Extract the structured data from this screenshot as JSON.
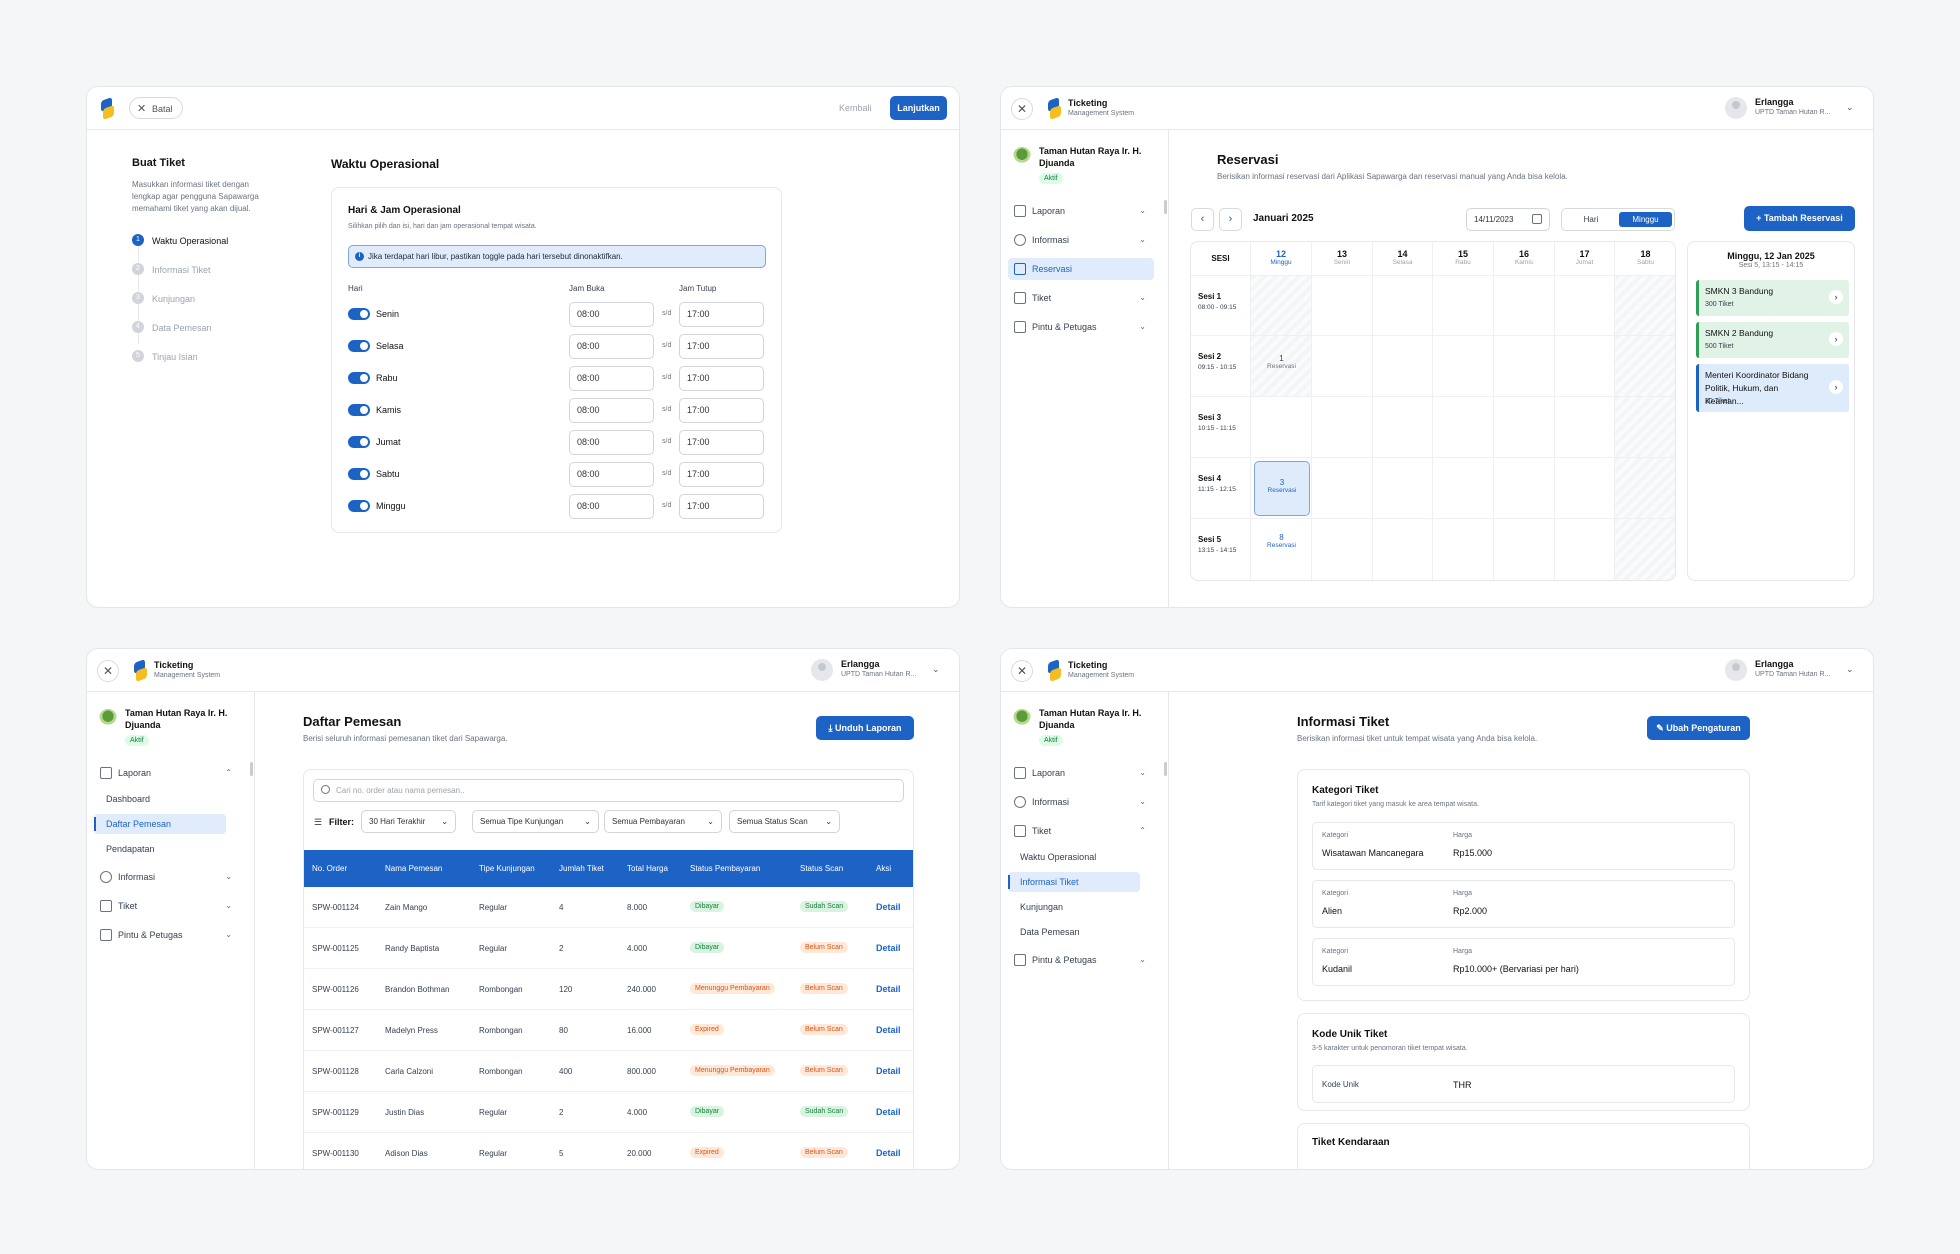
{
  "p1": {
    "cancel_label": "Batal",
    "back_label": "Kembali",
    "next_label": "Lanjutkan",
    "side_title": "Buat Tiket",
    "side_desc": [
      "Masukkan informasi tiket dengan",
      "lengkap agar pengguna Sapawarga",
      "memahami tiket yang akan dijual."
    ],
    "steps": [
      {
        "num": "1",
        "label": "Waktu Operasional"
      },
      {
        "num": "2",
        "label": "Informasi Tiket"
      },
      {
        "num": "3",
        "label": "Kunjungan"
      },
      {
        "num": "4",
        "label": "Data Pemesan"
      },
      {
        "num": "5",
        "label": "Tinjau Isian"
      }
    ],
    "main_title": "Waktu Operasional",
    "card_title": "Hari & Jam Operasional",
    "card_desc": "Silihkan pilih dan isi, hari dan jam operasional tempat wisata.",
    "info": "Jika terdapat hari libur, pastikan toggle pada hari tersebut dinonaktifkan.",
    "col_day": "Hari",
    "col_open": "Jam Buka",
    "col_close": "Jam Tutup",
    "sep": "s/d",
    "days": [
      {
        "day": "Senin",
        "open": "08:00",
        "close": "17:00"
      },
      {
        "day": "Selasa",
        "open": "08:00",
        "close": "17:00"
      },
      {
        "day": "Rabu",
        "open": "08:00",
        "close": "17:00"
      },
      {
        "day": "Kamis",
        "open": "08:00",
        "close": "17:00"
      },
      {
        "day": "Jumat",
        "open": "08:00",
        "close": "17:00"
      },
      {
        "day": "Sabtu",
        "open": "08:00",
        "close": "17:00"
      },
      {
        "day": "Minggu",
        "open": "08:00",
        "close": "17:00"
      }
    ]
  },
  "common": {
    "brand_title": "Ticketing",
    "brand_sub": "Management System",
    "user_name": "Erlangga",
    "user_org": "UPTD Taman Hutan R...",
    "org_name": "Taman Hutan Raya Ir. H. Djuanda",
    "org_status": "Aktif"
  },
  "p2": {
    "nav": [
      "Laporan",
      "Informasi",
      "Reservasi",
      "Tiket",
      "Pintu & Petugas"
    ],
    "title": "Reservasi",
    "desc": "Berisikan informasi reservasi dari Aplikasi Sapawarga dan reservasi manual yang Anda bisa kelola.",
    "month": "Januari 2025",
    "date_input": "14/11/2023",
    "view_day": "Hari",
    "view_week": "Minggu",
    "add_btn": "Tambah Reservasi",
    "sesi_header": "SESI",
    "days": [
      {
        "num": "12",
        "name": "Minggu"
      },
      {
        "num": "13",
        "name": "Senin"
      },
      {
        "num": "14",
        "name": "Selasa"
      },
      {
        "num": "15",
        "name": "Rabu"
      },
      {
        "num": "16",
        "name": "Kamis"
      },
      {
        "num": "17",
        "name": "Jumat"
      },
      {
        "num": "18",
        "name": "Sabtu"
      }
    ],
    "sessions": [
      {
        "name": "Sesi 1",
        "time": "08:00 - 09:15"
      },
      {
        "name": "Sesi 2",
        "time": "09:15 - 10:15"
      },
      {
        "name": "Sesi 3",
        "time": "10:15 - 11:15"
      },
      {
        "name": "Sesi 4",
        "time": "11:15 - 12:15"
      },
      {
        "name": "Sesi 5",
        "time": "13:15 - 14:15"
      }
    ],
    "res_s2": {
      "count": "1",
      "label": "Reservasi"
    },
    "res_s4": {
      "count": "3",
      "label": "Reservasi"
    },
    "res_s5": {
      "count": "8",
      "label": "Reservasi"
    },
    "detail_title": "Minggu, 12 Jan 2025",
    "detail_sub": "Sesi 5, 13:15 - 14:15",
    "detail_items": [
      {
        "name": "SMKN 3 Bandung",
        "qty": "300  Tiket"
      },
      {
        "name": "SMKN 2 Bandung",
        "qty": "500  Tiket"
      },
      {
        "name": "Menteri Koordinator Bidang Politik, Hukum, dan Keaman...",
        "qty": "30 Tiket"
      }
    ]
  },
  "p3": {
    "nav": [
      "Laporan",
      "Informasi",
      "Tiket",
      "Pintu & Petugas"
    ],
    "sub_nav": [
      "Dashboard",
      "Daftar Pemesan",
      "Pendapatan"
    ],
    "title": "Daftar Pemesan",
    "desc": "Berisi seluruh informasi pemesanan tiket dari Sapawarga.",
    "download_btn": "Unduh Laporan",
    "search_placeholder": "Cari no. order atau nama pemesan..",
    "filter_label": "Filter:",
    "filters": [
      "30 Hari Terakhir",
      "Semua Tipe Kunjungan",
      "Semua Pembayaran",
      "Semua Status Scan"
    ],
    "columns": [
      "No. Order",
      "Nama Pemesan",
      "Tipe Kunjungan",
      "Jumlah Tiket",
      "Total Harga",
      "Status Pembayaran",
      "Status Scan",
      "Aksi"
    ],
    "rows": [
      {
        "order": "SPW-001124",
        "name": "Zain Mango",
        "type": "Regular",
        "qty": "4",
        "total": "8.000",
        "pay": "Dibayar",
        "scan": "Sudah Scan",
        "action": "Detail"
      },
      {
        "order": "SPW-001125",
        "name": "Randy Baptista",
        "type": "Regular",
        "qty": "2",
        "total": "4.000",
        "pay": "Dibayar",
        "scan": "Belum Scan",
        "action": "Detail"
      },
      {
        "order": "SPW-001126",
        "name": "Brandon Bothman",
        "type": "Rombongan",
        "qty": "120",
        "total": "240.000",
        "pay": "Menunggu Pembayaran",
        "scan": "Belum Scan",
        "action": "Detail"
      },
      {
        "order": "SPW-001127",
        "name": "Madelyn Press",
        "type": "Rombongan",
        "qty": "80",
        "total": "16.000",
        "pay": "Expired",
        "scan": "Belum Scan",
        "action": "Detail"
      },
      {
        "order": "SPW-001128",
        "name": "Carla Calzoni",
        "type": "Rombongan",
        "qty": "400",
        "total": "800.000",
        "pay": "Menunggu Pembayaran",
        "scan": "Belum Scan",
        "action": "Detail"
      },
      {
        "order": "SPW-001129",
        "name": "Justin Dias",
        "type": "Regular",
        "qty": "2",
        "total": "4.000",
        "pay": "Dibayar",
        "scan": "Sudah Scan",
        "action": "Detail"
      },
      {
        "order": "SPW-001130",
        "name": "Adison Dias",
        "type": "Regular",
        "qty": "5",
        "total": "20.000",
        "pay": "Expired",
        "scan": "Belum Scan",
        "action": "Detail"
      }
    ]
  },
  "p4": {
    "nav": [
      "Laporan",
      "Informasi",
      "Tiket",
      "Pintu & Petugas"
    ],
    "sub_nav": [
      "Waktu Operasional",
      "Informasi Tiket",
      "Kunjungan",
      "Data Pemesan"
    ],
    "title": "Informasi Tiket",
    "desc": "Berisikan informasi tiket untuk tempat wisata yang Anda bisa kelola.",
    "edit_btn": "Ubah Pengaturan",
    "cat_title": "Kategori Tiket",
    "cat_desc": "Tarif kategori tiket yang masuk ke area tempat wisata.",
    "lbl_cat": "Kategori",
    "lbl_price": "Harga",
    "categories": [
      {
        "name": "Wisatawan Mancanegara",
        "price": "Rp15.000"
      },
      {
        "name": "Alien",
        "price": "Rp2.000"
      },
      {
        "name": "Kudanil",
        "price": "Rp10.000+ (Bervariasi per hari)"
      }
    ],
    "code_title": "Kode Unik Tiket",
    "code_desc": "3-5 karakter untuk penomoran tiket tempat wisata.",
    "code_label": "Kode Unik",
    "code_value": "THR",
    "vehicle_title": "Tiket Kendaraan"
  }
}
